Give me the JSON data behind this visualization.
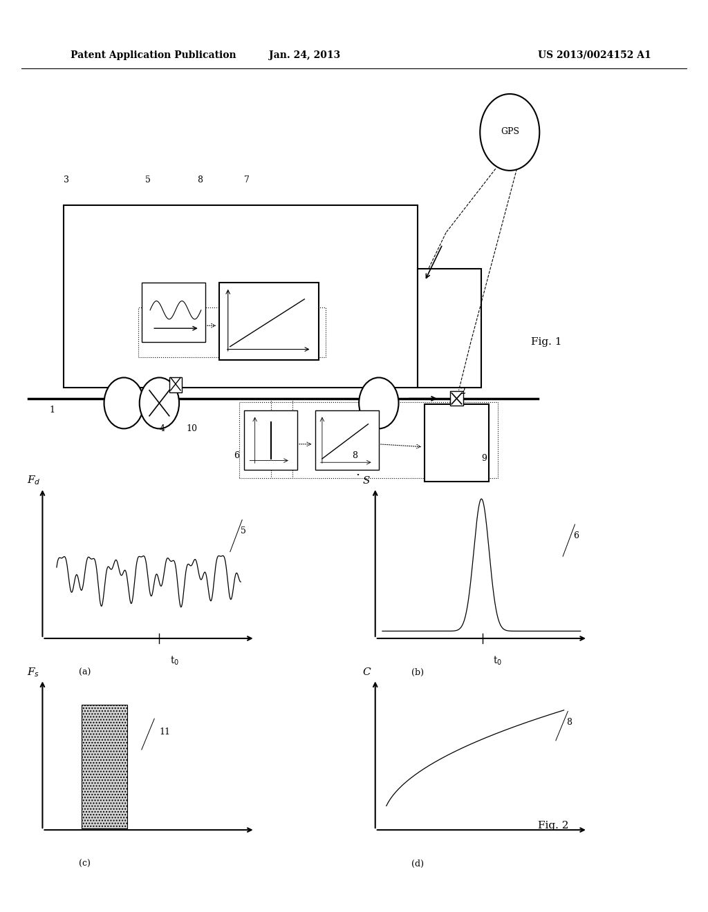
{
  "bg_color": "#ffffff",
  "header_left": "Patent Application Publication",
  "header_mid": "Jan. 24, 2013",
  "header_right": "US 2013/0024152 A1",
  "fig1_label": "Fig. 1",
  "fig2_label": "Fig. 2"
}
